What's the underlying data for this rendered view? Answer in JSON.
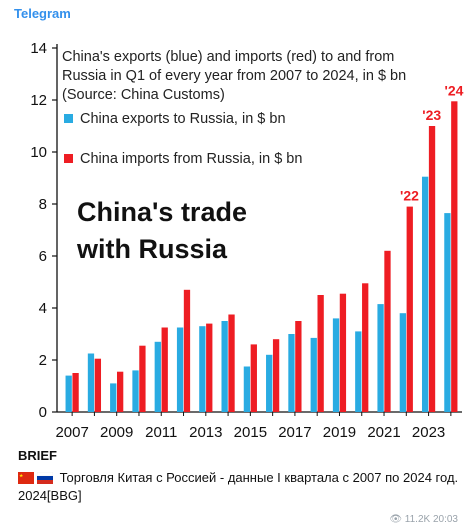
{
  "header": {
    "channel": "Telegram"
  },
  "chart_data": {
    "type": "bar",
    "title_lines": [
      "China's exports (blue) and imports (red) to and from",
      "Russia in Q1 of every year from 2007 to 2024, in $ bn",
      "(Source: China Customs)"
    ],
    "headline_lines": [
      "China's trade",
      "with Russia"
    ],
    "categories": [
      "2007",
      "2008",
      "2009",
      "2010",
      "2011",
      "2012",
      "2013",
      "2014",
      "2015",
      "2016",
      "2017",
      "2018",
      "2019",
      "2020",
      "2021",
      "2022",
      "2023",
      "2024"
    ],
    "x_tick_labels": [
      "2007",
      "2009",
      "2011",
      "2013",
      "2015",
      "2017",
      "2019",
      "2021",
      "2023"
    ],
    "ylim": [
      0,
      14
    ],
    "y_ticks": [
      0,
      2,
      4,
      6,
      8,
      10,
      12,
      14
    ],
    "grid": false,
    "legend_position": "top-left",
    "series": [
      {
        "name": "China exports to Russia, in $ bn",
        "color": "#29abe2",
        "values": [
          1.4,
          2.25,
          1.1,
          1.6,
          2.7,
          3.25,
          3.3,
          3.5,
          1.75,
          2.2,
          3.0,
          2.85,
          3.6,
          3.1,
          4.15,
          3.8,
          9.05,
          7.65
        ]
      },
      {
        "name": "China imports from Russia, in $ bn",
        "color": "#ee1d23",
        "values": [
          1.5,
          2.05,
          1.55,
          2.55,
          3.25,
          4.7,
          3.4,
          3.75,
          2.6,
          2.8,
          3.5,
          4.5,
          4.55,
          4.95,
          6.2,
          7.9,
          11.0,
          11.95
        ]
      }
    ],
    "annotations": [
      {
        "category": "2022",
        "label": "'22",
        "value": 7.9
      },
      {
        "category": "2023",
        "label": "'23",
        "value": 11.0
      },
      {
        "category": "2024",
        "label": "'24",
        "value": 11.95
      }
    ]
  },
  "caption": {
    "label": "BRIEF",
    "text": "Торговля Китая с Россией - данные I квартала с 2007 по 2024 год. 2024[BBG]"
  },
  "footer": {
    "views": "11.2K",
    "time": "20:03"
  }
}
